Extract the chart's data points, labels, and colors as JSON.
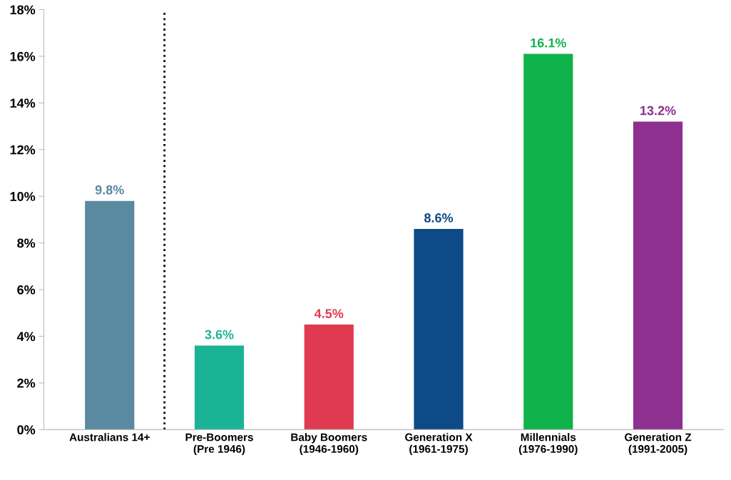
{
  "chart_data": {
    "type": "bar",
    "categories": [
      "Australians 14+",
      "Pre-Boomers\n(Pre 1946)",
      "Baby Boomers\n(1946-1960)",
      "Generation X\n(1961-1975)",
      "Millennials\n(1976-1990)",
      "Generation Z\n(1991-2005)"
    ],
    "values": [
      9.8,
      3.6,
      4.5,
      8.6,
      16.1,
      13.2
    ],
    "colors": [
      "#5a8a9f",
      "#1bb395",
      "#e03a50",
      "#0d4a87",
      "#10b24c",
      "#8e3090"
    ],
    "value_labels": [
      "9.8%",
      "3.6%",
      "4.5%",
      "8.6%",
      "16.1%",
      "13.2%"
    ],
    "ylim": [
      0,
      18
    ],
    "yticks": [
      {
        "value": 0,
        "label": "0%"
      },
      {
        "value": 2,
        "label": "2%"
      },
      {
        "value": 4,
        "label": "4%"
      },
      {
        "value": 6,
        "label": "6%"
      },
      {
        "value": 8,
        "label": "8%"
      },
      {
        "value": 10,
        "label": "10%"
      },
      {
        "value": 12,
        "label": "12%"
      },
      {
        "value": 14,
        "label": "14%"
      },
      {
        "value": 16,
        "label": "16%"
      },
      {
        "value": 18,
        "label": "18%"
      }
    ],
    "grid": false
  }
}
